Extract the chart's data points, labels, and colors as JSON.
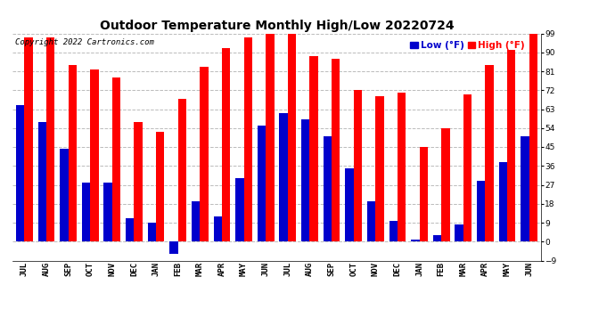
{
  "title": "Outdoor Temperature Monthly High/Low 20220724",
  "copyright": "Copyright 2022 Cartronics.com",
  "legend_low": "Low",
  "legend_high": "High",
  "legend_unit": "(°F)",
  "months": [
    "JUL",
    "AUG",
    "SEP",
    "OCT",
    "NOV",
    "DEC",
    "JAN",
    "FEB",
    "MAR",
    "APR",
    "MAY",
    "JUN",
    "JUL",
    "AUG",
    "SEP",
    "OCT",
    "NOV",
    "DEC",
    "JAN",
    "FEB",
    "MAR",
    "APR",
    "MAY",
    "JUN"
  ],
  "high_values": [
    97,
    97,
    84,
    82,
    78,
    57,
    52,
    68,
    83,
    92,
    97,
    99,
    99,
    88,
    87,
    72,
    69,
    71,
    45,
    54,
    70,
    84,
    91,
    100
  ],
  "low_values": [
    65,
    57,
    44,
    28,
    28,
    11,
    9,
    -6,
    19,
    12,
    30,
    55,
    61,
    58,
    50,
    35,
    19,
    10,
    1,
    3,
    8,
    29,
    38,
    50
  ],
  "ylim": [
    -9,
    99
  ],
  "yticks": [
    -9.0,
    0.0,
    9.0,
    18.0,
    27.0,
    36.0,
    45.0,
    54.0,
    63.0,
    72.0,
    81.0,
    90.0,
    99.0
  ],
  "bar_width": 0.38,
  "high_color": "#ff0000",
  "low_color": "#0000cc",
  "grid_color": "#bbbbbb",
  "bg_color": "#ffffff",
  "title_fontsize": 10,
  "tick_fontsize": 6.5,
  "copyright_fontsize": 6.5,
  "legend_fontsize": 7.5
}
